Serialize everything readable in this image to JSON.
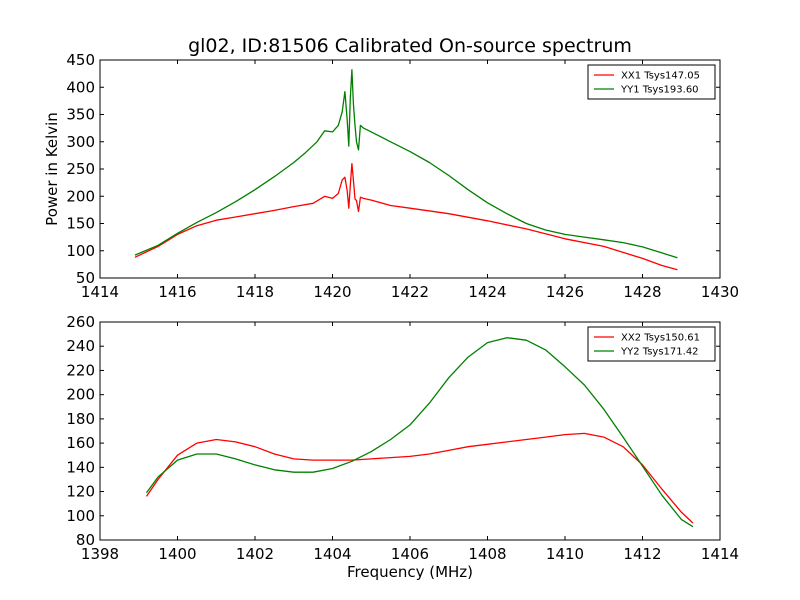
{
  "figure": {
    "title": "gl02, ID:81506 Calibrated On-source spectrum"
  },
  "chart_data": [
    {
      "type": "line",
      "title": "gl02, ID:81506 Calibrated On-source spectrum",
      "xlabel": "",
      "ylabel": "Power in Kelvin",
      "xlim": [
        1414,
        1430
      ],
      "ylim": [
        50,
        450
      ],
      "xticks": [
        1414,
        1416,
        1418,
        1420,
        1422,
        1424,
        1426,
        1428,
        1430
      ],
      "yticks": [
        50,
        100,
        150,
        200,
        250,
        300,
        350,
        400,
        450
      ],
      "grid": false,
      "legend_position": "top-right",
      "series": [
        {
          "name": "XX1 Tsys147.05",
          "color": "#ff0000",
          "x": [
            1414.9,
            1415.5,
            1416.0,
            1416.5,
            1417.0,
            1417.5,
            1418.0,
            1418.5,
            1419.0,
            1419.5,
            1419.8,
            1420.0,
            1420.15,
            1420.25,
            1420.32,
            1420.38,
            1420.42,
            1420.46,
            1420.5,
            1420.54,
            1420.58,
            1420.62,
            1420.67,
            1420.72,
            1420.8,
            1421.0,
            1421.5,
            1422.0,
            1423.0,
            1424.0,
            1425.0,
            1426.0,
            1427.0,
            1427.5,
            1428.0,
            1428.5,
            1428.9
          ],
          "y": [
            88,
            108,
            130,
            146,
            156,
            162,
            168,
            174,
            181,
            187,
            200,
            196,
            205,
            230,
            235,
            210,
            178,
            220,
            260,
            230,
            195,
            192,
            172,
            198,
            196,
            193,
            183,
            178,
            168,
            155,
            140,
            122,
            108,
            97,
            86,
            73,
            65
          ]
        },
        {
          "name": "YY1 Tsys193.60",
          "color": "#008000",
          "x": [
            1414.9,
            1415.5,
            1416.0,
            1416.5,
            1417.0,
            1417.5,
            1418.0,
            1418.5,
            1419.0,
            1419.3,
            1419.6,
            1419.8,
            1420.0,
            1420.15,
            1420.25,
            1420.32,
            1420.38,
            1420.42,
            1420.46,
            1420.5,
            1420.54,
            1420.58,
            1420.62,
            1420.67,
            1420.72,
            1420.8,
            1421.0,
            1421.5,
            1422.0,
            1422.5,
            1423.0,
            1423.5,
            1424.0,
            1424.5,
            1425.0,
            1425.5,
            1426.0,
            1426.5,
            1427.0,
            1427.5,
            1428.0,
            1428.5,
            1428.9
          ],
          "y": [
            92,
            110,
            132,
            152,
            170,
            190,
            212,
            236,
            262,
            280,
            300,
            320,
            318,
            330,
            355,
            392,
            340,
            292,
            380,
            432,
            370,
            330,
            300,
            285,
            330,
            325,
            318,
            300,
            282,
            262,
            238,
            212,
            188,
            168,
            150,
            138,
            130,
            125,
            120,
            115,
            107,
            96,
            87
          ]
        }
      ]
    },
    {
      "type": "line",
      "title": "",
      "xlabel": "Frequency (MHz)",
      "ylabel": "",
      "xlim": [
        1398,
        1414
      ],
      "ylim": [
        80,
        260
      ],
      "xticks": [
        1398,
        1400,
        1402,
        1404,
        1406,
        1408,
        1410,
        1412,
        1414
      ],
      "yticks": [
        80,
        100,
        120,
        140,
        160,
        180,
        200,
        220,
        240,
        260
      ],
      "grid": false,
      "legend_position": "top-right",
      "series": [
        {
          "name": "XX2 Tsys150.61",
          "color": "#ff0000",
          "x": [
            1399.2,
            1399.5,
            1400.0,
            1400.5,
            1401.0,
            1401.5,
            1402.0,
            1402.5,
            1403.0,
            1403.5,
            1404.0,
            1404.5,
            1405.0,
            1405.5,
            1406.0,
            1406.5,
            1407.0,
            1407.5,
            1408.0,
            1408.5,
            1409.0,
            1409.5,
            1410.0,
            1410.5,
            1411.0,
            1411.5,
            1412.0,
            1412.5,
            1413.0,
            1413.3
          ],
          "y": [
            116,
            130,
            150,
            160,
            163,
            161,
            157,
            151,
            147,
            146,
            146,
            146,
            147,
            148,
            149,
            151,
            154,
            157,
            159,
            161,
            163,
            165,
            167,
            168,
            165,
            157,
            142,
            122,
            103,
            94
          ]
        },
        {
          "name": "YY2 Tsys171.42",
          "color": "#008000",
          "x": [
            1399.2,
            1399.5,
            1400.0,
            1400.5,
            1401.0,
            1401.5,
            1402.0,
            1402.5,
            1403.0,
            1403.5,
            1404.0,
            1404.5,
            1405.0,
            1405.5,
            1406.0,
            1406.5,
            1407.0,
            1407.5,
            1408.0,
            1408.5,
            1409.0,
            1409.5,
            1410.0,
            1410.5,
            1411.0,
            1411.5,
            1412.0,
            1412.5,
            1413.0,
            1413.3
          ],
          "y": [
            119,
            132,
            146,
            151,
            151,
            147,
            142,
            138,
            136,
            136,
            139,
            145,
            153,
            163,
            175,
            193,
            214,
            231,
            243,
            247,
            245,
            237,
            223,
            208,
            188,
            165,
            141,
            117,
            97,
            91
          ]
        }
      ]
    }
  ]
}
